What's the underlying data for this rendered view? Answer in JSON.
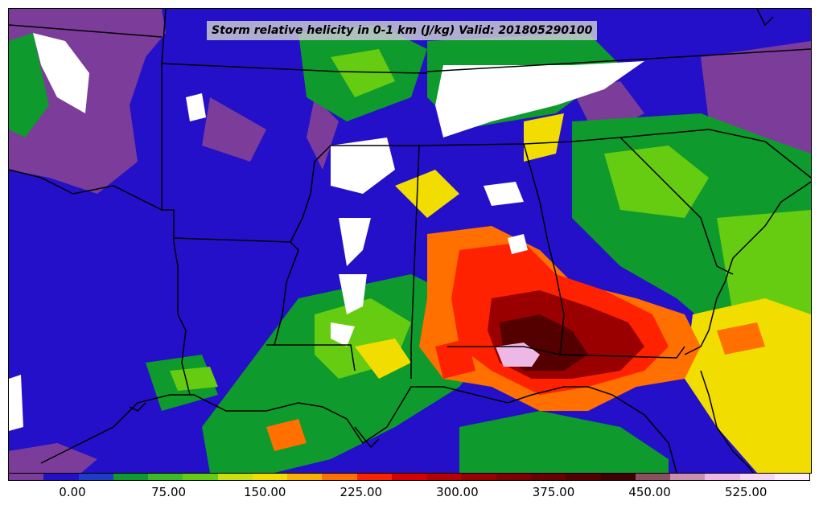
{
  "title": "Storm relative helicity in 0-1 km (J/kg) Valid: 201805290100",
  "colorbar": {
    "colors": [
      "#7b3d99",
      "#2410c8",
      "#1e3cc8",
      "#0e9a2c",
      "#3cbb25",
      "#66cc11",
      "#c8e010",
      "#f2dd00",
      "#ffb000",
      "#ff7000",
      "#ff2200",
      "#d80000",
      "#b80000",
      "#9a0000",
      "#7e0000",
      "#6a0000",
      "#540000",
      "#3e0000",
      "#8a5060",
      "#c890b0",
      "#eeb8e6",
      "#f5d6f5",
      "#fdf0fd"
    ],
    "tick_labels": [
      "0.00",
      "75.00",
      "150.00",
      "225.00",
      "300.00",
      "375.00",
      "450.00",
      "525.00"
    ]
  },
  "legend_colors": {
    "low": "#7b3d99",
    "background": "#2410c8",
    "mid_green": "#3cbb25",
    "yellow": "#f2dd00",
    "red": "#ff2200",
    "dark_red": "#6a0000",
    "pink": "#eeb8e6",
    "white": "#ffffff"
  }
}
